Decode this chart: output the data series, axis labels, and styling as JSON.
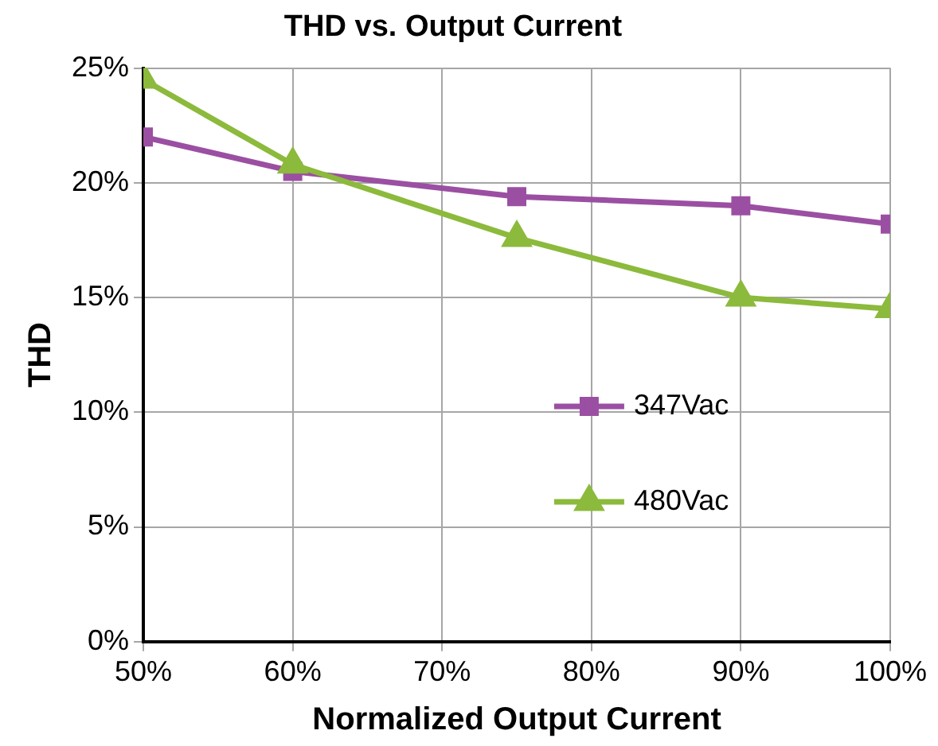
{
  "chart_data": {
    "type": "line",
    "title": "THD vs. Output Current",
    "xlabel": "Normalized Output Current",
    "ylabel": "THD",
    "x": [
      50,
      60,
      75,
      90,
      100
    ],
    "series": [
      {
        "name": "347Vac",
        "color": "#9b4fa2",
        "values": [
          22.0,
          20.5,
          19.4,
          19.0,
          18.2
        ],
        "marker": "square"
      },
      {
        "name": "480Vac",
        "color": "#8cba3c",
        "values": [
          24.5,
          20.8,
          17.6,
          15.0,
          14.5
        ],
        "marker": "triangle"
      }
    ],
    "xlim": [
      50,
      100
    ],
    "xticks": [
      {
        "value": 50,
        "label": "50%"
      },
      {
        "value": 60,
        "label": "60%"
      },
      {
        "value": 70,
        "label": "70%"
      },
      {
        "value": 80,
        "label": "80%"
      },
      {
        "value": 90,
        "label": "90%"
      },
      {
        "value": 100,
        "label": "100%"
      }
    ],
    "ylim": [
      0,
      25
    ],
    "yticks": [
      {
        "value": 0,
        "label": "0%"
      },
      {
        "value": 5,
        "label": "5%"
      },
      {
        "value": 10,
        "label": "10%"
      },
      {
        "value": 15,
        "label": "15%"
      },
      {
        "value": 20,
        "label": "20%"
      },
      {
        "value": 25,
        "label": "25%"
      }
    ],
    "grid": true,
    "legend": "right",
    "line_style": "solid"
  }
}
